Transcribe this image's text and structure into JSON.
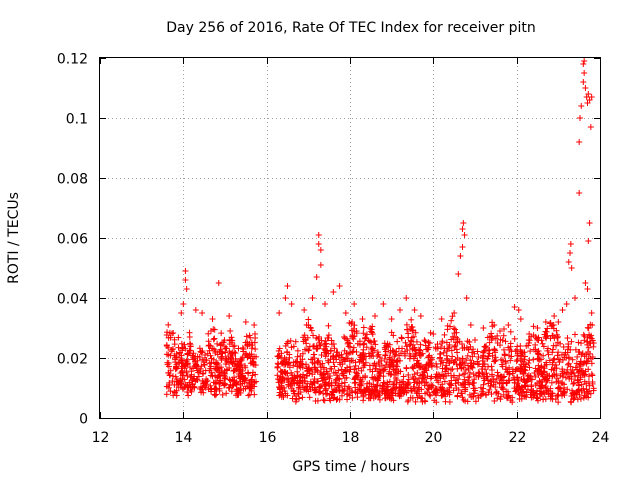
{
  "chart_data": {
    "type": "scatter",
    "title": "Day 256 of 2016, Rate Of TEC Index for receiver pitn",
    "xlabel": "GPS time / hours",
    "ylabel": "ROTI / TECUs",
    "xlim": [
      12,
      24
    ],
    "ylim": [
      0,
      0.12
    ],
    "xticks": [
      12,
      14,
      16,
      18,
      20,
      22,
      24
    ],
    "yticks": [
      0,
      0.02,
      0.04,
      0.06,
      0.08,
      0.1,
      0.12
    ],
    "xtick_labels": [
      "12",
      "14",
      "16",
      "18",
      "20",
      "22",
      "24"
    ],
    "ytick_labels": [
      "0",
      "0.02",
      "0.04",
      "0.06",
      "0.08",
      "0.1",
      "0.12"
    ],
    "grid": true,
    "marker": "+",
    "color": "#ff0000",
    "series": [
      {
        "name": "ROTI",
        "segments": [
          {
            "x_start": 13.6,
            "x_end": 15.75,
            "base_min": 0.007,
            "base_max": 0.03
          },
          {
            "x_start": 16.25,
            "x_end": 23.85,
            "base_min": 0.005,
            "base_max": 0.032
          }
        ],
        "points": [
          [
            14.05,
            0.049
          ],
          [
            14.05,
            0.046
          ],
          [
            14.08,
            0.043
          ],
          [
            14.0,
            0.038
          ],
          [
            13.95,
            0.035
          ],
          [
            14.3,
            0.036
          ],
          [
            14.45,
            0.035
          ],
          [
            14.85,
            0.045
          ],
          [
            14.7,
            0.033
          ],
          [
            15.1,
            0.034
          ],
          [
            15.5,
            0.032
          ],
          [
            15.7,
            0.031
          ],
          [
            16.3,
            0.035
          ],
          [
            16.5,
            0.044
          ],
          [
            16.45,
            0.04
          ],
          [
            16.6,
            0.038
          ],
          [
            16.9,
            0.036
          ],
          [
            17.1,
            0.04
          ],
          [
            17.25,
            0.061
          ],
          [
            17.25,
            0.058
          ],
          [
            17.3,
            0.056
          ],
          [
            17.3,
            0.051
          ],
          [
            17.2,
            0.047
          ],
          [
            17.4,
            0.038
          ],
          [
            17.6,
            0.042
          ],
          [
            17.75,
            0.044
          ],
          [
            17.9,
            0.035
          ],
          [
            18.05,
            0.032
          ],
          [
            18.1,
            0.038
          ],
          [
            18.3,
            0.033
          ],
          [
            18.6,
            0.034
          ],
          [
            18.8,
            0.038
          ],
          [
            19.0,
            0.033
          ],
          [
            19.2,
            0.036
          ],
          [
            19.35,
            0.04
          ],
          [
            19.55,
            0.036
          ],
          [
            19.7,
            0.034
          ],
          [
            20.0,
            0.028
          ],
          [
            20.2,
            0.033
          ],
          [
            20.5,
            0.035
          ],
          [
            20.6,
            0.048
          ],
          [
            20.65,
            0.054
          ],
          [
            20.7,
            0.057
          ],
          [
            20.7,
            0.063
          ],
          [
            20.72,
            0.065
          ],
          [
            20.75,
            0.061
          ],
          [
            20.8,
            0.04
          ],
          [
            20.9,
            0.031
          ],
          [
            21.0,
            0.026
          ],
          [
            21.2,
            0.03
          ],
          [
            21.4,
            0.026
          ],
          [
            21.6,
            0.029
          ],
          [
            21.8,
            0.031
          ],
          [
            21.95,
            0.037
          ],
          [
            22.05,
            0.036
          ],
          [
            22.1,
            0.033
          ],
          [
            22.3,
            0.028
          ],
          [
            22.5,
            0.03
          ],
          [
            22.7,
            0.032
          ],
          [
            22.9,
            0.034
          ],
          [
            23.0,
            0.032
          ],
          [
            23.1,
            0.036
          ],
          [
            23.2,
            0.038
          ],
          [
            23.25,
            0.052
          ],
          [
            23.28,
            0.055
          ],
          [
            23.3,
            0.058
          ],
          [
            23.32,
            0.05
          ],
          [
            23.4,
            0.04
          ],
          [
            23.5,
            0.075
          ],
          [
            23.5,
            0.092
          ],
          [
            23.52,
            0.1
          ],
          [
            23.55,
            0.104
          ],
          [
            23.6,
            0.112
          ],
          [
            23.6,
            0.118
          ],
          [
            23.62,
            0.119
          ],
          [
            23.62,
            0.115
          ],
          [
            23.65,
            0.11
          ],
          [
            23.68,
            0.107
          ],
          [
            23.7,
            0.105
          ],
          [
            23.72,
            0.108
          ],
          [
            23.75,
            0.106
          ],
          [
            23.78,
            0.097
          ],
          [
            23.8,
            0.107
          ],
          [
            23.75,
            0.065
          ],
          [
            23.72,
            0.059
          ],
          [
            23.7,
            0.043
          ],
          [
            23.65,
            0.045
          ],
          [
            23.8,
            0.035
          ],
          [
            23.85,
            0.025
          ],
          [
            23.82,
            0.012
          ]
        ]
      }
    ]
  }
}
